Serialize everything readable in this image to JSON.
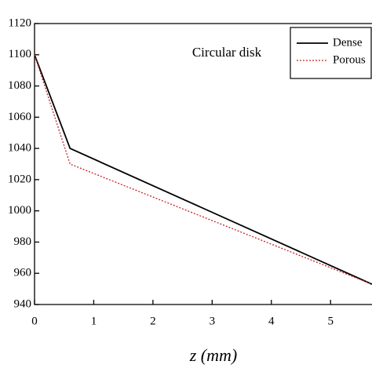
{
  "chart_data": {
    "type": "line",
    "annotation": "Circular disk",
    "x_label": "z (mm)",
    "x": [
      0,
      0.6,
      5.7
    ],
    "series": [
      {
        "name": "Dense",
        "color": "#000000",
        "dash": "solid",
        "values": [
          1100,
          1040,
          953
        ]
      },
      {
        "name": "Porous",
        "color": "#cc2222",
        "dash": "dotted",
        "values": [
          1100,
          1030,
          953
        ]
      }
    ],
    "xlim": [
      0,
      5.7
    ],
    "ylim": [
      940,
      1120
    ],
    "xticks": [
      0,
      1,
      2,
      3,
      4,
      5
    ],
    "yticks": [
      940,
      960,
      980,
      1000,
      1020,
      1040,
      1060,
      1080,
      1100,
      1120
    ]
  }
}
